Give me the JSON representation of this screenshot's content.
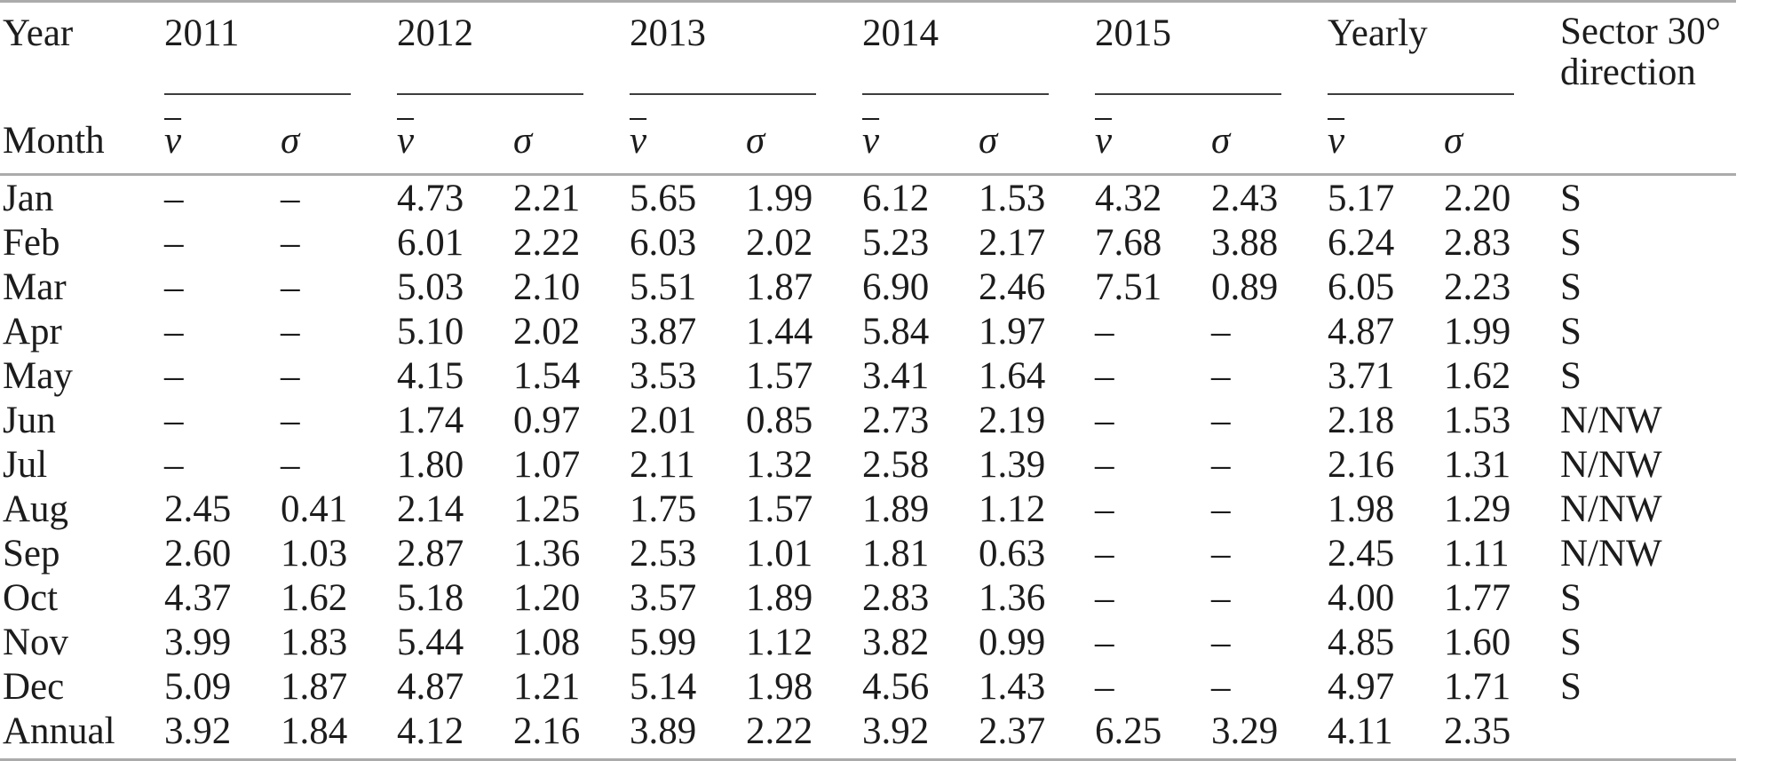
{
  "table": {
    "header": {
      "year_label": "Year",
      "month_label": "Month",
      "year_groups": [
        "2011",
        "2012",
        "2013",
        "2014",
        "2015",
        "Yearly"
      ],
      "mean_symbol": "v",
      "sigma_symbol": "σ",
      "sector_line1": "Sector 30°",
      "sector_line2": "direction"
    },
    "rows": [
      {
        "month": "Jan",
        "values": [
          "–",
          "–",
          "4.73",
          "2.21",
          "5.65",
          "1.99",
          "6.12",
          "1.53",
          "4.32",
          "2.43",
          "5.17",
          "2.20"
        ],
        "sector": "S"
      },
      {
        "month": "Feb",
        "values": [
          "–",
          "–",
          "6.01",
          "2.22",
          "6.03",
          "2.02",
          "5.23",
          "2.17",
          "7.68",
          "3.88",
          "6.24",
          "2.83"
        ],
        "sector": "S"
      },
      {
        "month": "Mar",
        "values": [
          "–",
          "–",
          "5.03",
          "2.10",
          "5.51",
          "1.87",
          "6.90",
          "2.46",
          "7.51",
          "0.89",
          "6.05",
          "2.23"
        ],
        "sector": "S"
      },
      {
        "month": "Apr",
        "values": [
          "–",
          "–",
          "5.10",
          "2.02",
          "3.87",
          "1.44",
          "5.84",
          "1.97",
          "–",
          "–",
          "4.87",
          "1.99"
        ],
        "sector": "S"
      },
      {
        "month": "May",
        "values": [
          "–",
          "–",
          "4.15",
          "1.54",
          "3.53",
          "1.57",
          "3.41",
          "1.64",
          "–",
          "–",
          "3.71",
          "1.62"
        ],
        "sector": "S"
      },
      {
        "month": "Jun",
        "values": [
          "–",
          "–",
          "1.74",
          "0.97",
          "2.01",
          "0.85",
          "2.73",
          "2.19",
          "–",
          "–",
          "2.18",
          "1.53"
        ],
        "sector": "N/NW"
      },
      {
        "month": "Jul",
        "values": [
          "–",
          "–",
          "1.80",
          "1.07",
          "2.11",
          "1.32",
          "2.58",
          "1.39",
          "–",
          "–",
          "2.16",
          "1.31"
        ],
        "sector": "N/NW"
      },
      {
        "month": "Aug",
        "values": [
          "2.45",
          "0.41",
          "2.14",
          "1.25",
          "1.75",
          "1.57",
          "1.89",
          "1.12",
          "–",
          "–",
          "1.98",
          "1.29"
        ],
        "sector": "N/NW"
      },
      {
        "month": "Sep",
        "values": [
          "2.60",
          "1.03",
          "2.87",
          "1.36",
          "2.53",
          "1.01",
          "1.81",
          "0.63",
          "–",
          "–",
          "2.45",
          "1.11"
        ],
        "sector": "N/NW"
      },
      {
        "month": "Oct",
        "values": [
          "4.37",
          "1.62",
          "5.18",
          "1.20",
          "3.57",
          "1.89",
          "2.83",
          "1.36",
          "–",
          "–",
          "4.00",
          "1.77"
        ],
        "sector": "S"
      },
      {
        "month": "Nov",
        "values": [
          "3.99",
          "1.83",
          "5.44",
          "1.08",
          "5.99",
          "1.12",
          "3.82",
          "0.99",
          "–",
          "–",
          "4.85",
          "1.60"
        ],
        "sector": "S"
      },
      {
        "month": "Dec",
        "values": [
          "5.09",
          "1.87",
          "4.87",
          "1.21",
          "5.14",
          "1.98",
          "4.56",
          "1.43",
          "–",
          "–",
          "4.97",
          "1.71"
        ],
        "sector": "S"
      },
      {
        "month": "Annual",
        "values": [
          "3.92",
          "1.84",
          "4.12",
          "2.16",
          "3.89",
          "2.22",
          "3.92",
          "2.37",
          "6.25",
          "3.29",
          "4.11",
          "2.35"
        ],
        "sector": ""
      }
    ]
  }
}
